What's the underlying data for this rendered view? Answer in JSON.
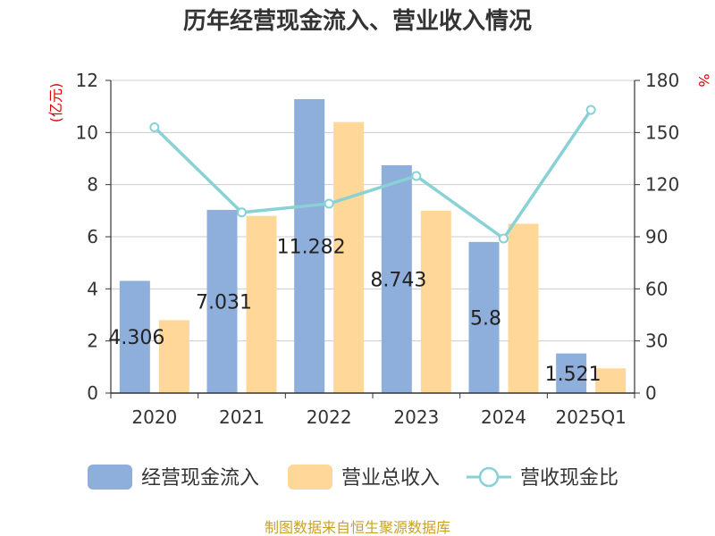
{
  "chart_data": {
    "type": "bar",
    "title": "历年经营现金流入、营业收入情况",
    "categories": [
      "2020",
      "2021",
      "2022",
      "2023",
      "2024",
      "2025Q1"
    ],
    "series": [
      {
        "name": "经营现金流入",
        "type": "bar",
        "axis": "left",
        "color": "#8eaedb",
        "values": [
          4.306,
          7.031,
          11.282,
          8.743,
          5.8,
          1.521
        ],
        "labels": [
          "4.306",
          "7.031",
          "11.282",
          "8.743",
          "5.8",
          "1.521"
        ]
      },
      {
        "name": "营业总收入",
        "type": "bar",
        "axis": "left",
        "color": "#ffd899",
        "values": [
          2.8,
          6.8,
          10.4,
          7.0,
          6.5,
          0.95
        ]
      },
      {
        "name": "营收现金比",
        "type": "line",
        "axis": "right",
        "color": "#88d1d4",
        "values": [
          153,
          104,
          109,
          125,
          89,
          163
        ]
      }
    ],
    "y_left": {
      "unit": "(亿元)",
      "min": 0,
      "max": 12,
      "ticks": [
        0,
        2,
        4,
        6,
        8,
        10,
        12
      ]
    },
    "y_right": {
      "unit": "%",
      "min": 0,
      "max": 180,
      "ticks": [
        0,
        30,
        60,
        90,
        120,
        150,
        180
      ]
    },
    "grid": true,
    "legend_position": "bottom"
  },
  "source": "制图数据来自恒生聚源数据库"
}
